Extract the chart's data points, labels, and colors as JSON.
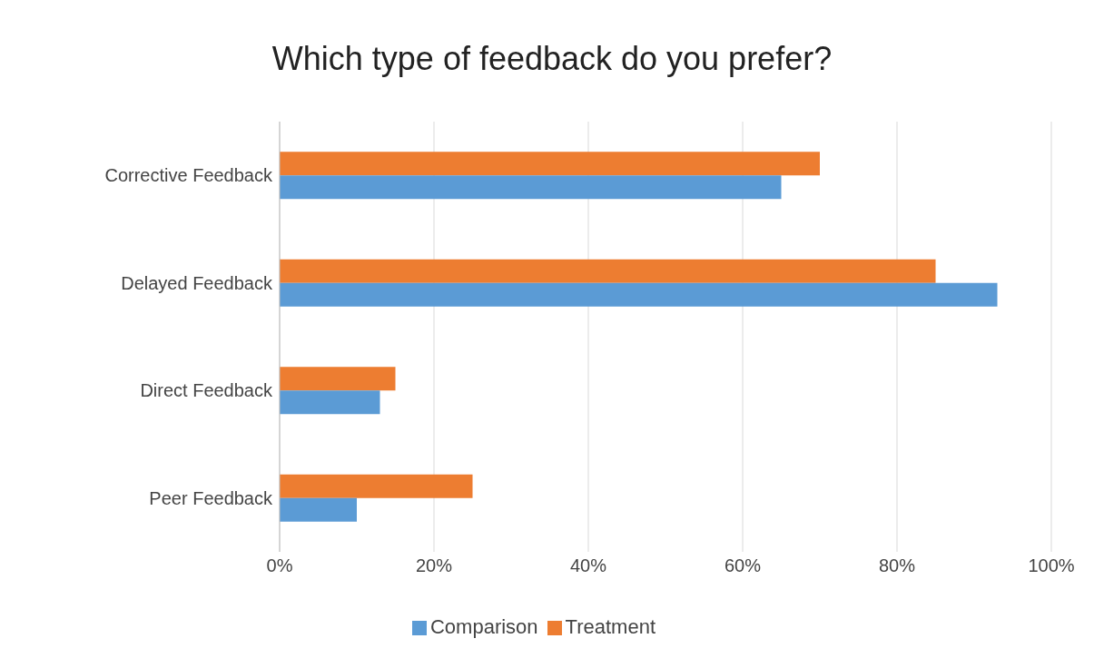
{
  "chart_data": {
    "type": "bar",
    "title": "Which type of feedback do you prefer?",
    "orientation": "horizontal",
    "categories": [
      "Corrective Feedback",
      "Delayed Feedback",
      "Direct Feedback",
      "Peer Feedback"
    ],
    "series": [
      {
        "name": "Treatment",
        "color": "#ed7d31",
        "values": [
          70,
          85,
          15,
          25
        ]
      },
      {
        "name": "Comparison",
        "color": "#5b9bd5",
        "values": [
          65,
          93,
          13,
          10
        ]
      }
    ],
    "xlim": [
      0,
      100
    ],
    "xticks": [
      {
        "value": 0,
        "label": "0%"
      },
      {
        "value": 20,
        "label": "20%"
      },
      {
        "value": 40,
        "label": "40%"
      },
      {
        "value": 60,
        "label": "60%"
      },
      {
        "value": 80,
        "label": "80%"
      },
      {
        "value": 100,
        "label": "100%"
      }
    ],
    "grid": "x",
    "legend": "bottom"
  }
}
